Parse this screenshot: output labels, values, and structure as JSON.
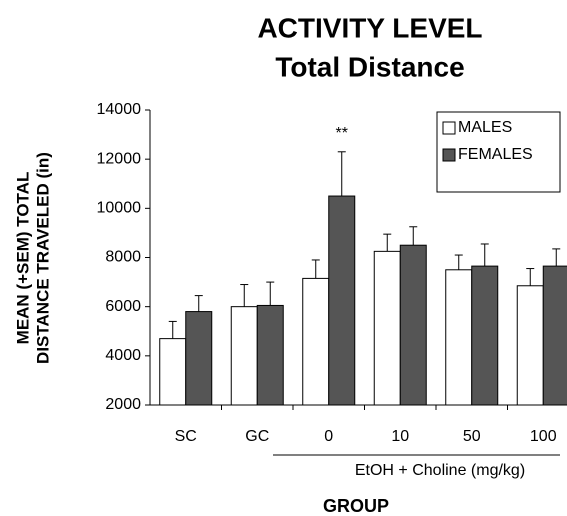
{
  "chart_data": {
    "type": "bar",
    "title": "ACTIVITY LEVEL",
    "subtitle": "Total Distance",
    "y_label": [
      "MEAN (+SEM) TOTAL",
      "DISTANCE TRAVELED (in)"
    ],
    "x_label": "GROUP",
    "annotations": [
      "**",
      "EtOH + Choline (mg/kg)"
    ],
    "categories": [
      "SC",
      "GC",
      "0",
      "10",
      "50",
      "100"
    ],
    "series": [
      {
        "name": "MALES",
        "color": "#ffffff",
        "values": [
          4700,
          6000,
          7150,
          8250,
          7500,
          6850
        ],
        "errors": [
          700,
          900,
          750,
          700,
          600,
          700
        ]
      },
      {
        "name": "FEMALES",
        "color": "#555555",
        "values": [
          5800,
          6050,
          10500,
          8500,
          7650,
          7650
        ],
        "errors": [
          650,
          950,
          1800,
          750,
          900,
          700
        ]
      }
    ],
    "ylim": [
      2000,
      14000
    ],
    "yticks": [
      2000,
      4000,
      6000,
      8000,
      10000,
      12000,
      14000
    ],
    "grid": false,
    "legend": "upper right"
  }
}
